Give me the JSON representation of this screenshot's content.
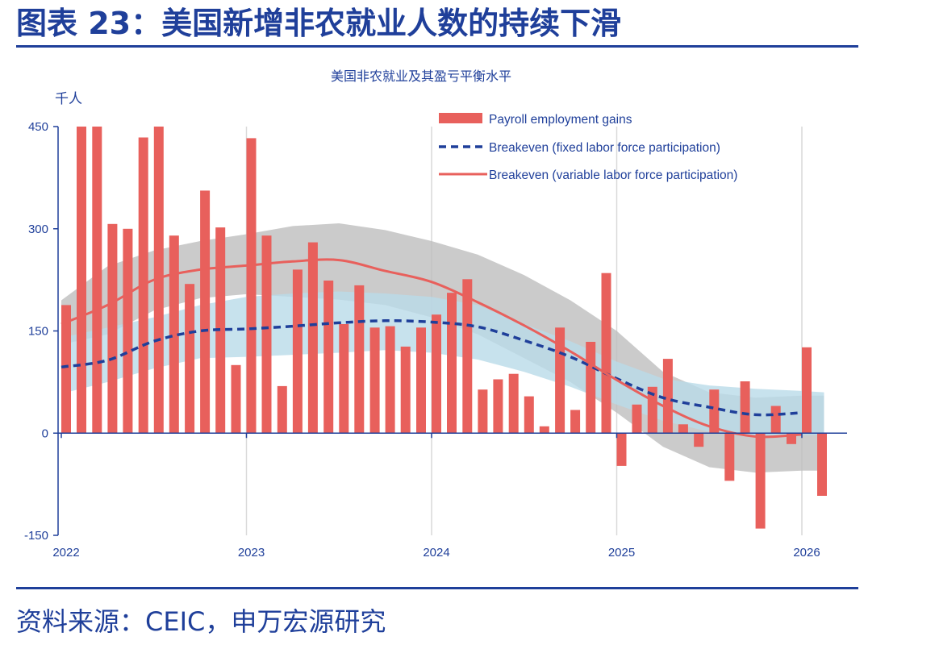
{
  "figure": {
    "title": "图表 23：美国新增非农就业人数的持续下滑",
    "source": "资料来源：CEIC，申万宏源研究"
  },
  "chart_data": {
    "type": "bar",
    "title": "美国非农就业及其盈亏平衡水平",
    "ylabel": "千人",
    "ylim": [
      -150,
      450
    ],
    "yticks": [
      -150,
      0,
      150,
      300,
      450
    ],
    "xlim": [
      2022.0,
      2026.25
    ],
    "xticks": [
      {
        "label": "2022",
        "value": 2022
      },
      {
        "label": "2023",
        "value": 2023
      },
      {
        "label": "2024",
        "value": 2024
      },
      {
        "label": "2025",
        "value": 2025
      },
      {
        "label": "2026",
        "value": 2026
      }
    ],
    "grid": "vertical at year ticks",
    "legend_position": "top-right",
    "colors": {
      "bars": "#e8605c",
      "fixed_line": "#1f3f9a",
      "variable_line": "#e8605c",
      "band_grey": "#bcbcbc",
      "band_blue": "#b9dbe8",
      "axis": "#1f3f9a",
      "grid": "#d9d9d9"
    },
    "bar_series": {
      "name": "Payroll employment gains",
      "x": [
        2022.0,
        2022.083,
        2022.167,
        2022.25,
        2022.333,
        2022.417,
        2022.5,
        2022.583,
        2022.667,
        2022.75,
        2022.833,
        2022.917,
        2023.0,
        2023.083,
        2023.167,
        2023.25,
        2023.333,
        2023.417,
        2023.5,
        2023.583,
        2023.667,
        2023.75,
        2023.833,
        2023.917,
        2024.0,
        2024.083,
        2024.167,
        2024.25,
        2024.333,
        2024.417,
        2024.5,
        2024.583,
        2024.667,
        2024.75,
        2024.833,
        2024.917,
        2025.0,
        2025.083,
        2025.167,
        2025.25,
        2025.333,
        2025.417,
        2025.5,
        2025.583,
        2025.667,
        2025.75,
        2025.833,
        2025.917,
        2026.0,
        2026.083
      ],
      "values": [
        188,
        504,
        504,
        307,
        300,
        434,
        450,
        290,
        219,
        356,
        302,
        100,
        433,
        290,
        69,
        240,
        280,
        224,
        160,
        217,
        155,
        157,
        127,
        155,
        174,
        206,
        226,
        64,
        79,
        87,
        54,
        10,
        155,
        34,
        134,
        235,
        -48,
        42,
        68,
        109,
        13,
        -20,
        64,
        -70,
        76,
        -140,
        40,
        -16,
        126,
        -92
      ]
    },
    "line_series": [
      {
        "name": "Breakeven (fixed labor force participation)",
        "style": "dashed",
        "x": [
          2022.0,
          2022.25,
          2022.5,
          2022.75,
          2023.0,
          2023.25,
          2023.5,
          2023.75,
          2024.0,
          2024.25,
          2024.5,
          2024.75,
          2025.0,
          2025.25,
          2025.5,
          2025.75,
          2026.0
        ],
        "y": [
          97,
          107,
          135,
          150,
          153,
          157,
          162,
          165,
          163,
          156,
          136,
          112,
          80,
          52,
          38,
          27,
          30
        ]
      },
      {
        "name": "Breakeven (variable labor force participation)",
        "style": "solid",
        "x": [
          2022.0,
          2022.25,
          2022.5,
          2022.75,
          2023.0,
          2023.25,
          2023.5,
          2023.75,
          2024.0,
          2024.25,
          2024.5,
          2024.75,
          2025.0,
          2025.25,
          2025.5,
          2025.75,
          2026.0
        ],
        "y": [
          160,
          188,
          225,
          240,
          246,
          252,
          254,
          238,
          222,
          192,
          158,
          120,
          78,
          40,
          10,
          -5,
          -2
        ]
      }
    ],
    "bands": [
      {
        "color": "grey",
        "x": [
          2022.0,
          2022.25,
          2022.5,
          2022.75,
          2023.0,
          2023.25,
          2023.5,
          2023.75,
          2024.0,
          2024.25,
          2024.5,
          2024.75,
          2025.0,
          2025.25,
          2025.5,
          2025.75,
          2026.0,
          2026.12
        ],
        "upper": [
          195,
          245,
          268,
          282,
          292,
          304,
          308,
          298,
          282,
          262,
          232,
          195,
          150,
          90,
          60,
          52,
          55,
          55
        ],
        "lower": [
          130,
          145,
          180,
          198,
          204,
          200,
          196,
          188,
          170,
          145,
          110,
          75,
          30,
          -20,
          -50,
          -58,
          -55,
          -55
        ]
      },
      {
        "color": "blue",
        "x": [
          2022.0,
          2022.25,
          2022.5,
          2022.75,
          2023.0,
          2023.25,
          2023.5,
          2023.75,
          2024.0,
          2024.25,
          2024.5,
          2024.75,
          2025.0,
          2025.25,
          2025.5,
          2025.75,
          2026.0,
          2026.12
        ],
        "upper": [
          140,
          155,
          170,
          188,
          200,
          205,
          208,
          205,
          200,
          188,
          160,
          135,
          105,
          80,
          70,
          65,
          62,
          60
        ],
        "lower": [
          58,
          75,
          95,
          110,
          112,
          115,
          118,
          122,
          118,
          108,
          90,
          68,
          42,
          18,
          2,
          -5,
          -3,
          -3
        ]
      }
    ]
  }
}
